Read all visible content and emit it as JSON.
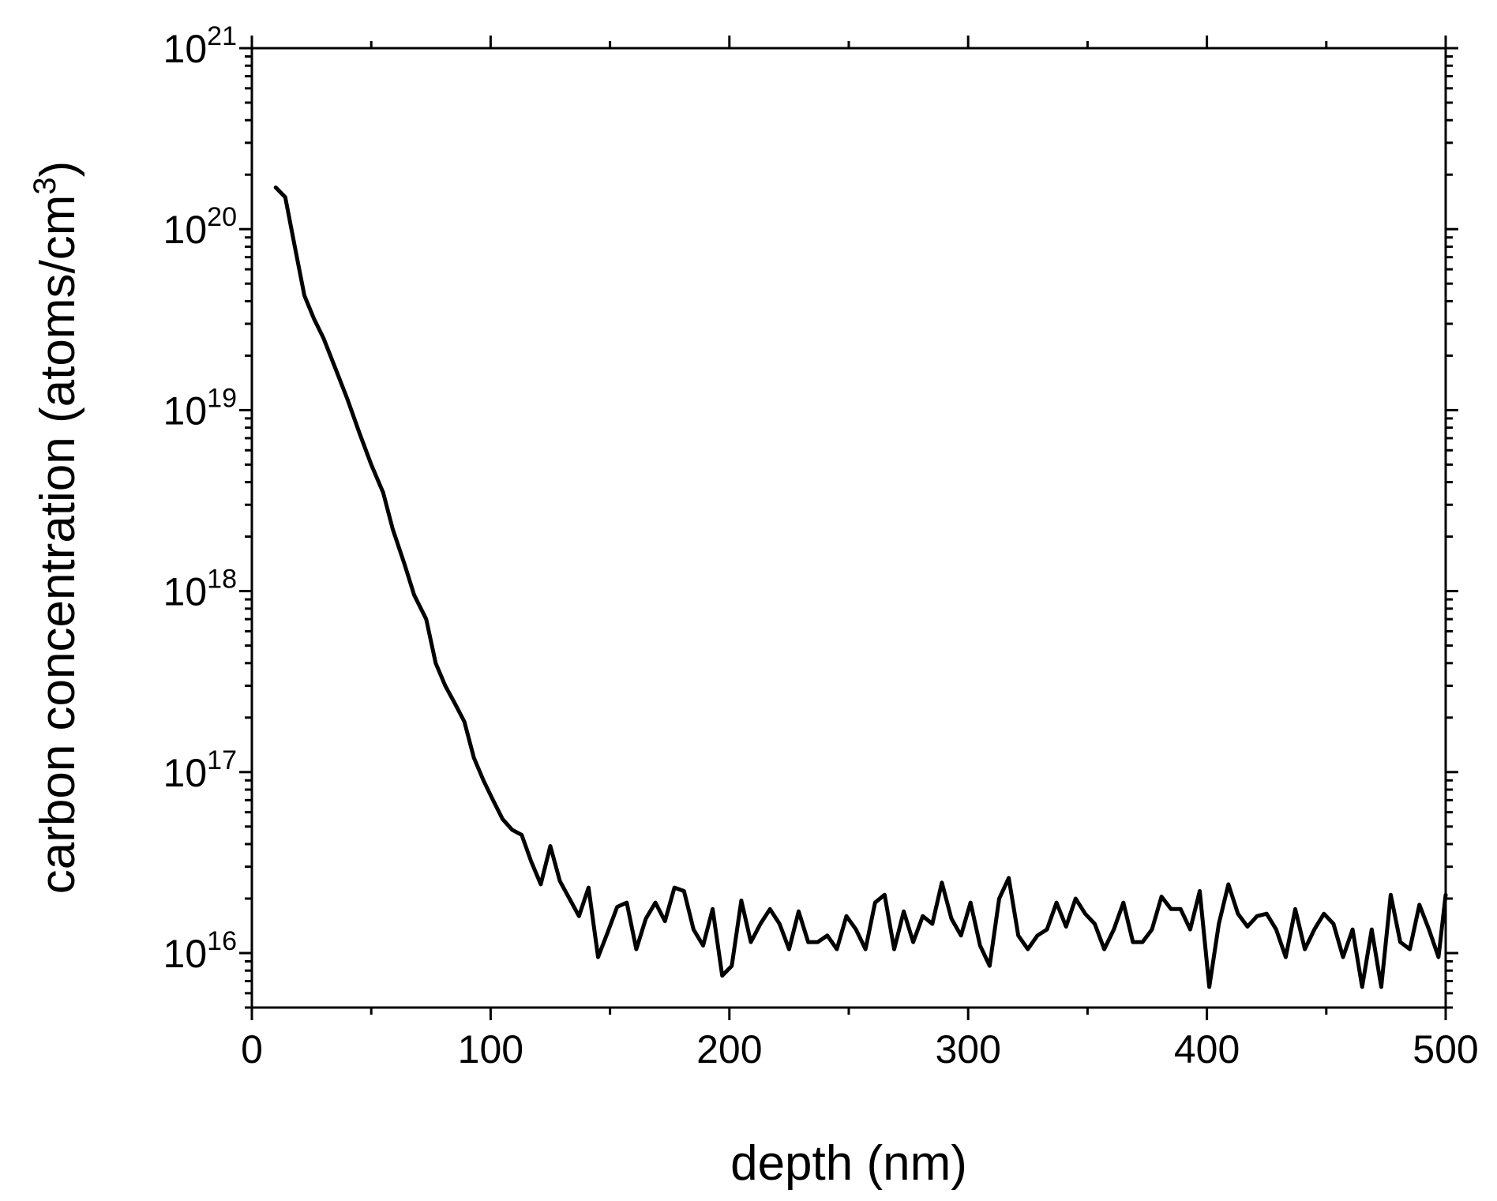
{
  "chart_data": {
    "type": "line",
    "title": "",
    "xlabel": "depth (nm)",
    "ylabel": {
      "main": "carbon concentration (atoms/cm",
      "superscript": "3",
      "close": ")"
    },
    "x_ticks": [
      "0",
      "100",
      "200",
      "300",
      "400",
      "500"
    ],
    "x_tick_values": [
      0,
      100,
      200,
      300,
      400,
      500
    ],
    "y_ticks": [
      {
        "value": 1e+16,
        "base": "10",
        "exp": "16"
      },
      {
        "value": 1e+17,
        "base": "10",
        "exp": "17"
      },
      {
        "value": 1e+18,
        "base": "10",
        "exp": "18"
      },
      {
        "value": 1e+19,
        "base": "10",
        "exp": "19"
      },
      {
        "value": 1e+20,
        "base": "10",
        "exp": "20"
      },
      {
        "value": 1e+21,
        "base": "10",
        "exp": "21"
      }
    ],
    "xlim": [
      0,
      500
    ],
    "ylim": [
      5000000000000000.0,
      1e+21
    ],
    "yscale": "log",
    "grid": false,
    "legend": "none",
    "line_color": "#000000",
    "series": [
      {
        "x": [
          10,
          14,
          18,
          22,
          26,
          30,
          35,
          40,
          45,
          50,
          55,
          59,
          64,
          68,
          73,
          77,
          81,
          85,
          89,
          93,
          97,
          101,
          105,
          109,
          113,
          117,
          121,
          125,
          129,
          133,
          137,
          141,
          145,
          149,
          153,
          157,
          161,
          165,
          169,
          173,
          177,
          181,
          185,
          189,
          193,
          197,
          201,
          205,
          209,
          213,
          217,
          221,
          225,
          229,
          233,
          237,
          241,
          245,
          249,
          253,
          257,
          261,
          265,
          269,
          273,
          277,
          281,
          285,
          289,
          293,
          297,
          301,
          305,
          309,
          313,
          317,
          321,
          325,
          329,
          333,
          337,
          341,
          345,
          349,
          353,
          357,
          361,
          365,
          369,
          373,
          377,
          381,
          385,
          389,
          393,
          397,
          401,
          405,
          409,
          413,
          417,
          421,
          425,
          429,
          433,
          437,
          441,
          445,
          449,
          453,
          457,
          461,
          465,
          469,
          473,
          477,
          481,
          485,
          489,
          493,
          497,
          500
        ],
        "y": [
          1.7e+20,
          1.5e+20,
          8e+19,
          4.3e+19,
          3.2e+19,
          2.5e+19,
          1.7e+19,
          1.15e+19,
          7.5e+18,
          5e+18,
          3.5e+18,
          2.2e+18,
          1.4e+18,
          9.5e+17,
          7e+17,
          4e+17,
          3e+17,
          2.4e+17,
          1.9e+17,
          1.2e+17,
          9e+16,
          7e+16,
          5.5e+16,
          4.8e+16,
          4.5e+16,
          3.2e+16,
          2.4e+16,
          3.9e+16,
          2.5e+16,
          2e+16,
          1.6e+16,
          2.3e+16,
          9500000000000000.0,
          1.3e+16,
          1.8e+16,
          1.9e+16,
          1.05e+16,
          1.55e+16,
          1.9e+16,
          1.5e+16,
          2.3e+16,
          2.2e+16,
          1.35e+16,
          1.1e+16,
          1.75e+16,
          7500000000000000.0,
          8500000000000000.0,
          1.95e+16,
          1.15e+16,
          1.45e+16,
          1.75e+16,
          1.45e+16,
          1.05e+16,
          1.7e+16,
          1.15e+16,
          1.15e+16,
          1.25e+16,
          1.05e+16,
          1.6e+16,
          1.35e+16,
          1.05e+16,
          1.9e+16,
          2.1e+16,
          1.05e+16,
          1.7e+16,
          1.15e+16,
          1.6e+16,
          1.45e+16,
          2.45e+16,
          1.55e+16,
          1.25e+16,
          1.9e+16,
          1.1e+16,
          8500000000000000.0,
          2e+16,
          2.6e+16,
          1.25e+16,
          1.05e+16,
          1.25e+16,
          1.35e+16,
          1.9e+16,
          1.4e+16,
          2e+16,
          1.65e+16,
          1.45e+16,
          1.05e+16,
          1.35e+16,
          1.9e+16,
          1.15e+16,
          1.15e+16,
          1.35e+16,
          2.05e+16,
          1.75e+16,
          1.75e+16,
          1.35e+16,
          2.2e+16,
          6500000000000000.0,
          1.45e+16,
          2.4e+16,
          1.65e+16,
          1.4e+16,
          1.6e+16,
          1.65e+16,
          1.35e+16,
          9500000000000000.0,
          1.75e+16,
          1.05e+16,
          1.35e+16,
          1.65e+16,
          1.45e+16,
          9500000000000000.0,
          1.35e+16,
          6500000000000000.0,
          1.35e+16,
          6500000000000000.0,
          2.1e+16,
          1.15e+16,
          1.05e+16,
          1.85e+16,
          1.35e+16,
          9500000000000000.0,
          2.1e+16
        ]
      }
    ]
  }
}
